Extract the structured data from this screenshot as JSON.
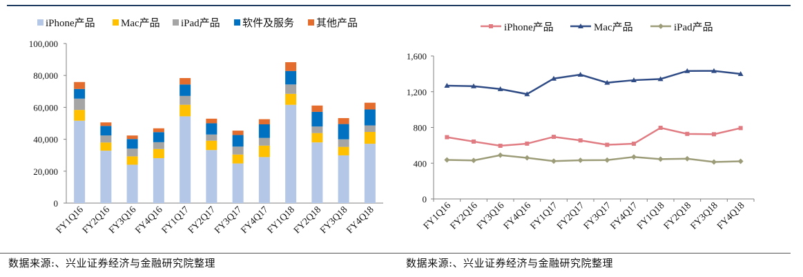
{
  "chart_data": [
    {
      "type": "stacked-bar",
      "title": "",
      "categories": [
        "FY1Q16",
        "FY2Q16",
        "FY3Q16",
        "FY4Q16",
        "FY1Q17",
        "FY2Q17",
        "FY3Q17",
        "FY4Q17",
        "FY1Q18",
        "FY2Q18",
        "FY3Q18",
        "FY4Q18"
      ],
      "series": [
        {
          "name": "iPhone产品",
          "color": "#b4c7e7",
          "values": [
            51635,
            32857,
            24048,
            28160,
            54378,
            33249,
            24846,
            28846,
            61576,
            38032,
            29906,
            37185
          ]
        },
        {
          "name": "Mac产品",
          "color": "#ffc000",
          "values": [
            6746,
            5107,
            5239,
            5739,
            7244,
            5844,
            5592,
            7170,
            6895,
            5848,
            5330,
            7411
          ]
        },
        {
          "name": "iPad产品",
          "color": "#a5a5a5",
          "values": [
            7084,
            4413,
            4876,
            4255,
            5533,
            3889,
            4969,
            4831,
            5862,
            4113,
            4741,
            4089
          ]
        },
        {
          "name": "软件及服务",
          "color": "#0070c0",
          "values": [
            6056,
            5991,
            5976,
            6325,
            7172,
            7041,
            7266,
            8501,
            8471,
            9190,
            9548,
            9981
          ]
        },
        {
          "name": "其他产品",
          "color": "#e46c2c",
          "values": [
            4351,
            2189,
            2219,
            2379,
            4024,
            2873,
            2735,
            3231,
            5489,
            3954,
            3740,
            4234
          ]
        }
      ],
      "ylim": [
        0,
        100000
      ],
      "yticks": [
        "0",
        "20,000",
        "40,000",
        "60,000",
        "80,000",
        "100,000"
      ],
      "legend": "top"
    },
    {
      "type": "line",
      "title": "",
      "categories": [
        "FY1Q16",
        "FY2Q16",
        "FY3Q16",
        "FY4Q16",
        "FY1Q17",
        "FY2Q17",
        "FY3Q17",
        "FY4Q17",
        "FY1Q18",
        "FY2Q18",
        "FY3Q18",
        "FY4Q18"
      ],
      "series": [
        {
          "name": "iPhone产品",
          "color": "#e07b82",
          "marker": "square",
          "values": [
            691,
            642,
            595,
            619,
            695,
            655,
            606,
            618,
            796,
            728,
            724,
            793
          ]
        },
        {
          "name": "Mac产品",
          "color": "#2f4b85",
          "marker": "triangle",
          "values": [
            1268,
            1262,
            1230,
            1173,
            1347,
            1391,
            1301,
            1329,
            1342,
            1432,
            1433,
            1399
          ]
        },
        {
          "name": "iPad产品",
          "color": "#9c9c78",
          "marker": "diamond",
          "values": [
            437,
            431,
            490,
            460,
            423,
            433,
            435,
            470,
            445,
            450,
            414,
            421
          ]
        }
      ],
      "ylim": [
        0,
        1600
      ],
      "yticks": [
        "0",
        "400",
        "800",
        "1,200",
        "1,600"
      ],
      "legend": "top"
    }
  ],
  "sources": {
    "left": "数据来源:、兴业证券经济与金融研究院整理",
    "right": "数据来源:、兴业证券经济与金融研究院整理"
  }
}
